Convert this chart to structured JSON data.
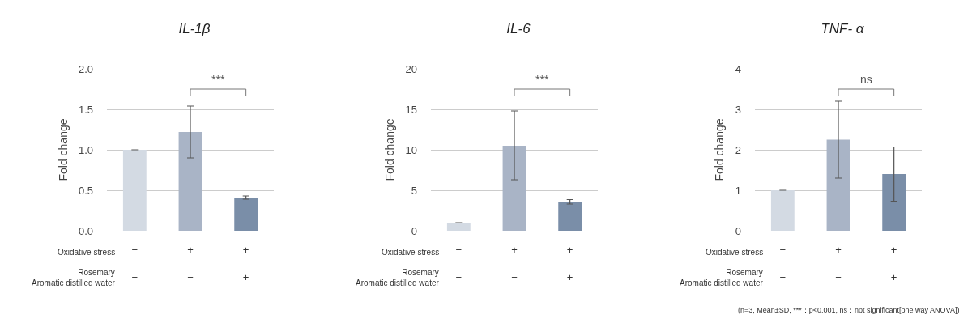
{
  "chart_data": [
    {
      "type": "bar",
      "title": "IL-1β",
      "ylabel": "Fold change",
      "categories": [
        "−\n−",
        "+\n−",
        "+\n+"
      ],
      "values": [
        1.0,
        1.22,
        0.41
      ],
      "colors": [
        "#d3dae3",
        "#a9b4c6",
        "#7a8ea8"
      ],
      "errors": [
        0,
        [
          0.9,
          1.54
        ],
        [
          0.39,
          0.43
        ]
      ],
      "ylim": [
        0,
        2
      ],
      "yticks": [
        {
          "value": 0,
          "label": "0.0"
        },
        {
          "value": 0.5,
          "label": "0.5"
        },
        {
          "value": 1,
          "label": "1.0"
        },
        {
          "value": 1.5,
          "label": "1.5"
        },
        {
          "value": 2,
          "label": "2.0"
        }
      ],
      "grid": "y",
      "annotations": [
        "***",
        "Oxidative stress",
        "Rosemary\nAromatic distilled water"
      ]
    },
    {
      "type": "bar",
      "title": "IL-6",
      "ylabel": "Fold change",
      "categories": [
        "−\n−",
        "+\n−",
        "+\n+"
      ],
      "values": [
        1.0,
        10.5,
        3.5
      ],
      "colors": [
        "#d3dae3",
        "#a9b4c6",
        "#7a8ea8"
      ],
      "errors": [
        0,
        [
          6.3,
          14.8
        ],
        [
          3.3,
          3.85
        ]
      ],
      "ylim": [
        0,
        20
      ],
      "yticks": [
        0,
        5,
        10,
        15,
        20
      ],
      "grid": "y",
      "annotations": [
        "***",
        "Oxidative stress",
        "Rosemary\nAromatic distilled water"
      ]
    },
    {
      "type": "bar",
      "title": "TNF- α",
      "ylabel": "Fold change",
      "categories": [
        "−\n−",
        "+\n−",
        "+\n+"
      ],
      "values": [
        1.0,
        2.25,
        1.4
      ],
      "colors": [
        "#d3dae3",
        "#a9b4c6",
        "#7a8ea8"
      ],
      "errors": [
        0,
        [
          1.3,
          3.2
        ],
        [
          0.73,
          2.07
        ]
      ],
      "ylim": [
        0,
        4
      ],
      "yticks": [
        0,
        1,
        2,
        3,
        4
      ],
      "grid": "y",
      "annotations": [
        "ns",
        "Oxidative stress",
        "Rosemary\nAromatic distilled water",
        "(n=3, Mean±SD, ***：p<0.001, ns：not significant[one way ANOVA])"
      ]
    }
  ]
}
